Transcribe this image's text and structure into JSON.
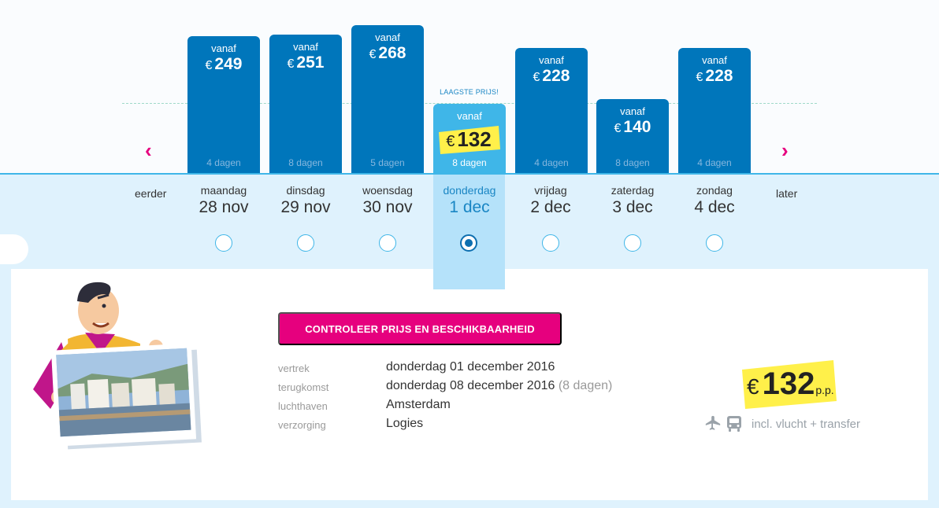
{
  "nav": {
    "earlier_label": "eerder",
    "later_label": "later",
    "prev_arrow": "‹",
    "next_arrow": "›"
  },
  "lowest_label": "LAAGSTE PRIJS!",
  "currency_symbol": "€",
  "days": [
    {
      "vanaf": "vanaf",
      "price": "249",
      "duration": "4 dagen",
      "weekday": "maandag",
      "date": "28 nov",
      "selected": false
    },
    {
      "vanaf": "vanaf",
      "price": "251",
      "duration": "8 dagen",
      "weekday": "dinsdag",
      "date": "29 nov",
      "selected": false
    },
    {
      "vanaf": "vanaf",
      "price": "268",
      "duration": "5 dagen",
      "weekday": "woensdag",
      "date": "30 nov",
      "selected": false
    },
    {
      "vanaf": "vanaf",
      "price": "132",
      "duration": "8 dagen",
      "weekday": "donderdag",
      "date": "1 dec",
      "selected": true
    },
    {
      "vanaf": "vanaf",
      "price": "228",
      "duration": "4 dagen",
      "weekday": "vrijdag",
      "date": "2 dec",
      "selected": false
    },
    {
      "vanaf": "vanaf",
      "price": "140",
      "duration": "8 dagen",
      "weekday": "zaterdag",
      "date": "3 dec",
      "selected": false
    },
    {
      "vanaf": "vanaf",
      "price": "228",
      "duration": "4 dagen",
      "weekday": "zondag",
      "date": "4 dec",
      "selected": false
    }
  ],
  "cta_label": "CONTROLEER PRIJS EN BESCHIKBAARHEID",
  "details": {
    "departure_label": "vertrek",
    "departure_value": "donderdag 01 december 2016",
    "return_label": "terugkomst",
    "return_value": "donderdag 08 december 2016",
    "return_duration": "(8 dagen)",
    "airport_label": "luchthaven",
    "airport_value": "Amsterdam",
    "board_label": "verzorging",
    "board_value": "Logies"
  },
  "summary": {
    "price": "132",
    "per_person": "p.p.",
    "includes": "incl. vlucht + transfer"
  },
  "colors": {
    "bar": "#0076bb",
    "selected_bar": "#3fb6e8",
    "accent": "#e6007e",
    "highlight": "#fff04a"
  },
  "icons": [
    "chevron-left-icon",
    "chevron-right-icon",
    "plane-icon",
    "bus-icon",
    "mascot-illustration",
    "hotel-photo"
  ]
}
